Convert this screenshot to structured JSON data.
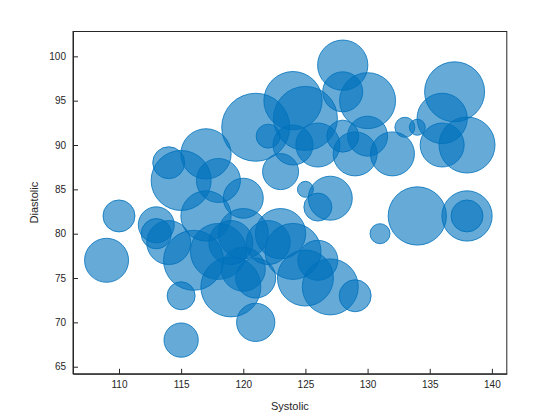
{
  "chart_data": {
    "type": "bubble",
    "x_label": "Systolic",
    "y_label": "Diastolic",
    "x": [
      109,
      110,
      113,
      114,
      115,
      115,
      115,
      116,
      117,
      117,
      118,
      118,
      119,
      120,
      120,
      121,
      121,
      121,
      122,
      123,
      123,
      124,
      124,
      125,
      125,
      125,
      126,
      126,
      127,
      127,
      128,
      128,
      128,
      129,
      129,
      130,
      130,
      131,
      132,
      133,
      134,
      134,
      136,
      136,
      137,
      138,
      138,
      138,
      119,
      113,
      114,
      122,
      124,
      126,
      120
    ],
    "y": [
      77,
      82,
      80,
      88,
      86,
      73,
      68,
      77,
      89,
      82,
      86,
      78,
      74,
      84,
      80,
      70,
      92,
      75,
      91,
      87,
      80,
      78,
      95,
      93,
      75,
      85,
      90,
      83,
      74,
      84,
      99,
      96,
      91,
      73,
      89,
      95,
      91,
      80,
      89,
      92,
      82,
      92,
      93,
      90,
      96,
      90,
      82,
      82,
      79,
      81,
      79,
      79,
      90,
      77,
      76
    ],
    "size": [
      159,
      138,
      135,
      138,
      187,
      131,
      142,
      187,
      170,
      170,
      159,
      180,
      187,
      152,
      170,
      149,
      201,
      152,
      124,
      145,
      170,
      180,
      184,
      194,
      180,
      110,
      159,
      131,
      180,
      159,
      170,
      152,
      138,
      138,
      159,
      180,
      152,
      117,
      159,
      117,
      184,
      110,
      170,
      159,
      187,
      180,
      170,
      138,
      159,
      145,
      159,
      159,
      152,
      152,
      159
    ],
    "color": "#0072bd",
    "xlim": [
      106.3,
      141.2
    ],
    "xticks": [
      110,
      115,
      120,
      125,
      130,
      135,
      140
    ],
    "ylim": [
      64.2,
      102.8
    ],
    "yticks": [
      65,
      70,
      75,
      80,
      85,
      90,
      95,
      100
    ]
  }
}
